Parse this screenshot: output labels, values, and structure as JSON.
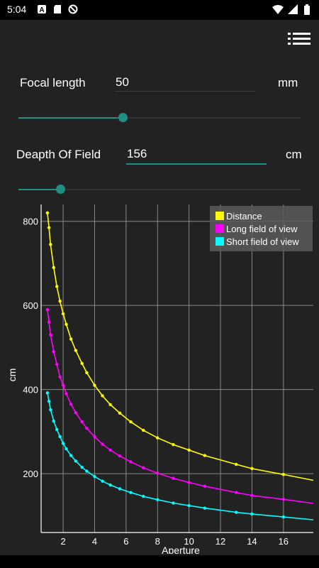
{
  "status_bar": {
    "time": "5:04",
    "icons": [
      "app-a-icon",
      "sd-card-icon",
      "blocked-icon"
    ],
    "right_icons": [
      "wifi-icon",
      "signal-icon",
      "battery-icon"
    ]
  },
  "toolbar": {
    "menu_icon": "list-menu-icon"
  },
  "focal_length": {
    "label": "Focal length",
    "value": "50",
    "unit": "mm",
    "slider_fraction": 0.37
  },
  "depth_of_field": {
    "label": "Deapth Of Field",
    "value": "156",
    "unit": "cm",
    "slider_fraction": 0.15
  },
  "chart_data": {
    "type": "line",
    "xlabel": "Aperture",
    "ylabel": "cm",
    "xticks": [
      2,
      4,
      6,
      8,
      10,
      12,
      14,
      16
    ],
    "yticks": [
      200,
      400,
      600,
      800
    ],
    "xlim": [
      0.6,
      17.9
    ],
    "ylim": [
      60,
      840
    ],
    "grid": true,
    "legend_position": "top-right",
    "series": [
      {
        "name": "Distance",
        "color": "#ffff00",
        "x": [
          1.0,
          1.1,
          1.2,
          1.4,
          1.6,
          1.8,
          2.0,
          2.2,
          2.5,
          2.8,
          3.2,
          3.5,
          4.0,
          4.5,
          5.0,
          5.6,
          6.3,
          7.1,
          8.0,
          9.0,
          10.0,
          11.0,
          13.0,
          14.0,
          16.0
        ],
        "y": [
          820,
          785,
          745,
          690,
          645,
          610,
          580,
          555,
          520,
          493,
          462,
          440,
          410,
          385,
          364,
          344,
          323,
          303,
          285,
          269,
          256,
          243,
          222,
          212,
          198
        ]
      },
      {
        "name": "Long field of view",
        "color": "#ff00ff",
        "x": [
          1.0,
          1.1,
          1.2,
          1.4,
          1.6,
          1.8,
          2.0,
          2.2,
          2.5,
          2.8,
          3.2,
          3.5,
          4.0,
          4.5,
          5.0,
          5.6,
          6.3,
          7.1,
          8.0,
          9.0,
          10.0,
          11.0,
          13.0,
          14.0,
          16.0
        ],
        "y": [
          590,
          560,
          530,
          490,
          460,
          430,
          410,
          390,
          365,
          345,
          323,
          308,
          288,
          270,
          256,
          242,
          228,
          214,
          201,
          189,
          179,
          170,
          155,
          148,
          139
        ]
      },
      {
        "name": "Short field of view",
        "color": "#00ffff",
        "x": [
          1.0,
          1.1,
          1.2,
          1.4,
          1.6,
          1.8,
          2.0,
          2.2,
          2.5,
          2.8,
          3.2,
          3.5,
          4.0,
          4.5,
          5.0,
          5.6,
          6.3,
          7.1,
          8.0,
          9.0,
          10.0,
          11.0,
          13.0,
          14.0,
          16.0
        ],
        "y": [
          392,
          372,
          352,
          325,
          305,
          288,
          272,
          259,
          243,
          230,
          215,
          206,
          193,
          182,
          173,
          164,
          155,
          146,
          138,
          130,
          124,
          118,
          108,
          104,
          97
        ]
      }
    ]
  }
}
